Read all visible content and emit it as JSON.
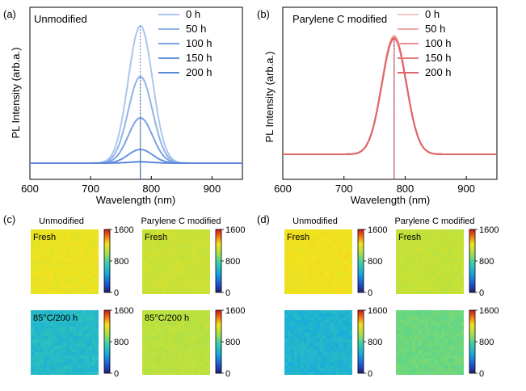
{
  "chart_data": [
    {
      "panel": "(a)",
      "type": "line",
      "title": "Unmodified",
      "xlabel": "Wavelength (nm)",
      "ylabel": "PL Intensity (arb.a.)",
      "xlim": [
        600,
        950
      ],
      "ylim": [
        0,
        1.1
      ],
      "x_ticks": [
        600,
        700,
        800,
        900
      ],
      "peak_nm": 782,
      "legend_position": "top-right",
      "series": [
        {
          "name": "0 h",
          "peak": 1.0,
          "color": "#aac6ee"
        },
        {
          "name": "50 h",
          "peak": 0.63,
          "color": "#91b3e8"
        },
        {
          "name": "100 h",
          "peak": 0.33,
          "color": "#7aa3e2"
        },
        {
          "name": "150 h",
          "peak": 0.1,
          "color": "#6893dc"
        },
        {
          "name": "200 h",
          "peak": 0.01,
          "color": "#5b87d9"
        }
      ]
    },
    {
      "panel": "(b)",
      "type": "line",
      "title": "Parylene C modified",
      "xlabel": "Wavelength (nm)",
      "ylabel": "PL Intensity (arb.a.)",
      "xlim": [
        600,
        950
      ],
      "ylim": [
        0,
        1.1
      ],
      "x_ticks": [
        600,
        700,
        800,
        900
      ],
      "peak_nm": 782,
      "legend_position": "top-right",
      "series": [
        {
          "name": "0 h",
          "peak": 1.0,
          "color": "#f5c4c4"
        },
        {
          "name": "50 h",
          "peak": 0.99,
          "color": "#f0a9a9"
        },
        {
          "name": "100 h",
          "peak": 0.985,
          "color": "#ea9292"
        },
        {
          "name": "150 h",
          "peak": 0.98,
          "color": "#e47c7c"
        },
        {
          "name": "200 h",
          "peak": 0.975,
          "color": "#de6868"
        }
      ]
    },
    {
      "panel": "(c)",
      "type": "heatmap",
      "colorbar_ticks": [
        1600,
        800,
        0
      ],
      "columns": [
        {
          "title": "Unmodified",
          "maps": [
            {
              "label": "Fresh",
              "level": 1200
            },
            {
              "label": "85°C/200 h",
              "level": 600
            }
          ]
        },
        {
          "title": "Parylene C modified",
          "maps": [
            {
              "label": "Fresh",
              "level": 1100
            },
            {
              "label": "85°C/200 h",
              "level": 1050
            }
          ]
        }
      ]
    },
    {
      "panel": "(d)",
      "type": "heatmap",
      "colorbar_ticks": [
        1600,
        800,
        0
      ],
      "columns": [
        {
          "title": "Unmodified",
          "maps": [
            {
              "label": "Fresh",
              "level": 1220
            },
            {
              "label": "",
              "level": 560
            }
          ]
        },
        {
          "title": "Parylene C modified",
          "maps": [
            {
              "label": "Fresh",
              "level": 1080
            },
            {
              "label": "",
              "level": 860
            }
          ]
        }
      ]
    }
  ]
}
